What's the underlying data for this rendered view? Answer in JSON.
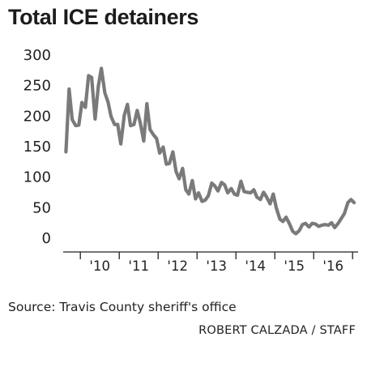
{
  "chart_data": {
    "type": "line",
    "title": "Total ICE detainers",
    "source": "Source: Travis County sheriff's office",
    "credit": "ROBERT CALZADA / STAFF",
    "xlabel": "",
    "ylabel": "",
    "ylim": [
      0,
      300
    ],
    "yticks": [
      0,
      50,
      100,
      150,
      200,
      250,
      300
    ],
    "xticks": [
      {
        "label": "'10",
        "x": 2010.0
      },
      {
        "label": "'11",
        "x": 2011.0
      },
      {
        "label": "'12",
        "x": 2012.0
      },
      {
        "label": "'13",
        "x": 2013.0
      },
      {
        "label": "'14",
        "x": 2014.0
      },
      {
        "label": "'15",
        "x": 2015.0
      },
      {
        "label": "'16",
        "x": 2016.0
      }
    ],
    "xlim": [
      2009.1,
      2016.6
    ],
    "grid": false,
    "legend": "none",
    "line_color": "#7a7a7a",
    "series": [
      {
        "x": [
          2009.13,
          2009.21,
          2009.29,
          2009.38,
          2009.46,
          2009.54,
          2009.63,
          2009.71,
          2009.79,
          2009.88,
          2009.96,
          2010.04,
          2010.13,
          2010.21,
          2010.29,
          2010.38,
          2010.46,
          2010.54,
          2010.63,
          2010.71,
          2010.79,
          2010.88,
          2010.96,
          2011.04,
          2011.13,
          2011.21,
          2011.29,
          2011.38,
          2011.46,
          2011.54,
          2011.63,
          2011.71,
          2011.79,
          2011.88,
          2011.96,
          2012.04,
          2012.13,
          2012.21,
          2012.29,
          2012.38,
          2012.46,
          2012.54,
          2012.63,
          2012.71,
          2012.79,
          2012.88,
          2012.96,
          2013.04,
          2013.13,
          2013.21,
          2013.29,
          2013.38,
          2013.46,
          2013.54,
          2013.63,
          2013.71,
          2013.79,
          2013.88,
          2013.96,
          2014.04,
          2014.13,
          2014.21,
          2014.29,
          2014.38,
          2014.46,
          2014.54,
          2014.63,
          2014.71,
          2014.79,
          2014.88,
          2014.96,
          2015.04,
          2015.13,
          2015.21,
          2015.29,
          2015.38,
          2015.46,
          2015.54,
          2015.63,
          2015.71,
          2015.79,
          2015.88,
          2015.96,
          2016.04,
          2016.13,
          2016.21,
          2016.29,
          2016.38,
          2016.46,
          2016.54
        ],
        "values": [
          140,
          243,
          193,
          183,
          184,
          221,
          213,
          265,
          262,
          194,
          247,
          277,
          237,
          222,
          198,
          185,
          185,
          153,
          200,
          218,
          183,
          185,
          208,
          188,
          158,
          219,
          177,
          168,
          162,
          138,
          148,
          120,
          121,
          140,
          108,
          96,
          113,
          78,
          71,
          93,
          63,
          73,
          59,
          61,
          68,
          89,
          84,
          76,
          90,
          86,
          73,
          80,
          71,
          69,
          92,
          75,
          74,
          73,
          78,
          66,
          62,
          74,
          66,
          55,
          71,
          48,
          30,
          26,
          33,
          22,
          10,
          6,
          11,
          21,
          23,
          17,
          23,
          22,
          18,
          20,
          21,
          20,
          24,
          16,
          23,
          31,
          39,
          57,
          62,
          57
        ]
      }
    ]
  }
}
